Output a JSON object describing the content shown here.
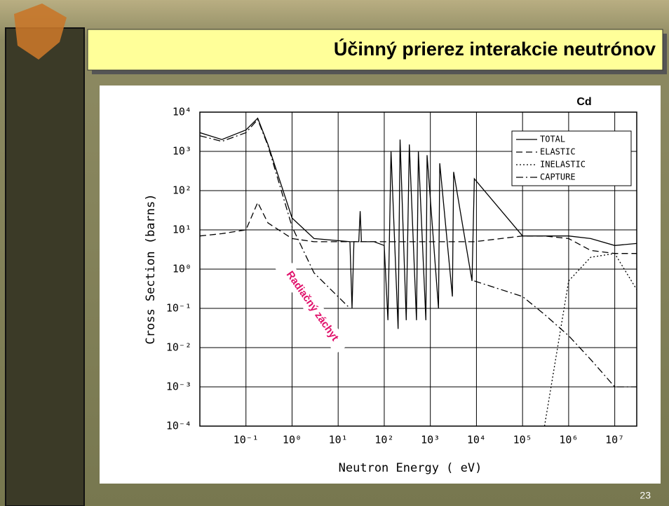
{
  "slide": {
    "title": "Účinný prierez interakcie neutrónov",
    "page_number": "23"
  },
  "chart_data": {
    "type": "line",
    "title": "Cd",
    "x_label": "Neutron Energy ( eV)",
    "y_label": "Cross Section (barns)",
    "annotation": "Radiačný záchyt",
    "annotation_color": "#e0106a",
    "x_scale": "log",
    "y_scale": "log",
    "grid": true,
    "legend": "upper right",
    "xlim": [
      0.01,
      30000000
    ],
    "ylim": [
      0.0001,
      10000
    ],
    "xticks": [
      {
        "value": 0.1,
        "label": "10⁻¹"
      },
      {
        "value": 1,
        "label": "10⁰"
      },
      {
        "value": 10,
        "label": "10¹"
      },
      {
        "value": 100,
        "label": "10²"
      },
      {
        "value": 1000,
        "label": "10³"
      },
      {
        "value": 10000,
        "label": "10⁴"
      },
      {
        "value": 100000,
        "label": "10⁵"
      },
      {
        "value": 1000000,
        "label": "10⁶"
      },
      {
        "value": 10000000,
        "label": "10⁷"
      }
    ],
    "yticks": [
      {
        "value": 0.0001,
        "label": "10⁻⁴"
      },
      {
        "value": 0.001,
        "label": "10⁻³"
      },
      {
        "value": 0.01,
        "label": "10⁻²"
      },
      {
        "value": 0.1,
        "label": "10⁻¹"
      },
      {
        "value": 1,
        "label": "10⁰"
      },
      {
        "value": 10,
        "label": "10¹"
      },
      {
        "value": 100,
        "label": "10²"
      },
      {
        "value": 1000,
        "label": "10³"
      },
      {
        "value": 10000,
        "label": "10⁴"
      }
    ],
    "x": [
      0.01,
      0.03,
      0.1,
      0.18,
      0.3,
      1,
      3,
      18,
      20,
      22,
      28,
      30,
      32,
      60,
      100,
      120,
      140,
      200,
      220,
      300,
      350,
      500,
      550,
      800,
      850,
      1500,
      1600,
      3000,
      3200,
      8000,
      9000,
      100000,
      300000,
      1000000,
      3000000,
      10000000,
      30000000
    ],
    "series": [
      {
        "name": "TOTAL",
        "color": "#000000",
        "dash": "solid",
        "values": [
          3000,
          2000,
          3500,
          7000,
          1500,
          20,
          6,
          5,
          0.1,
          5,
          5,
          30,
          5,
          5,
          4,
          0.05,
          1000,
          0.03,
          2000,
          0.05,
          1500,
          0.05,
          1000,
          0.05,
          800,
          0.1,
          500,
          0.2,
          300,
          0.5,
          200,
          7,
          7,
          7,
          6,
          4,
          4.5
        ]
      },
      {
        "name": "ELASTIC",
        "color": "#000000",
        "dash": "dashed",
        "values": [
          7,
          8,
          10,
          50,
          15,
          6,
          5,
          5,
          5,
          5,
          5,
          5,
          5,
          5,
          5,
          5,
          5,
          5,
          5,
          5,
          5,
          5,
          5,
          5,
          5,
          5,
          5,
          5,
          5,
          5,
          5,
          7,
          7,
          6,
          3,
          2.5,
          2.5
        ]
      },
      {
        "name": "INELASTIC",
        "color": "#000000",
        "dash": "dotted",
        "values": [
          null,
          null,
          null,
          null,
          null,
          null,
          null,
          null,
          null,
          null,
          null,
          null,
          null,
          null,
          null,
          null,
          null,
          null,
          null,
          null,
          null,
          null,
          null,
          null,
          null,
          null,
          null,
          null,
          null,
          null,
          null,
          null,
          0.0001,
          0.5,
          2,
          2.5,
          0.3
        ]
      },
      {
        "name": "CAPTURE",
        "color": "#000000",
        "dash": "dashdot",
        "values": [
          2500,
          1800,
          3000,
          6500,
          1400,
          12,
          0.8,
          0.1,
          null,
          null,
          null,
          null,
          null,
          null,
          null,
          null,
          null,
          null,
          null,
          null,
          null,
          null,
          null,
          null,
          null,
          null,
          null,
          null,
          null,
          null,
          0.5,
          0.2,
          0.07,
          0.02,
          0.005,
          0.001,
          0.001
        ]
      }
    ]
  }
}
